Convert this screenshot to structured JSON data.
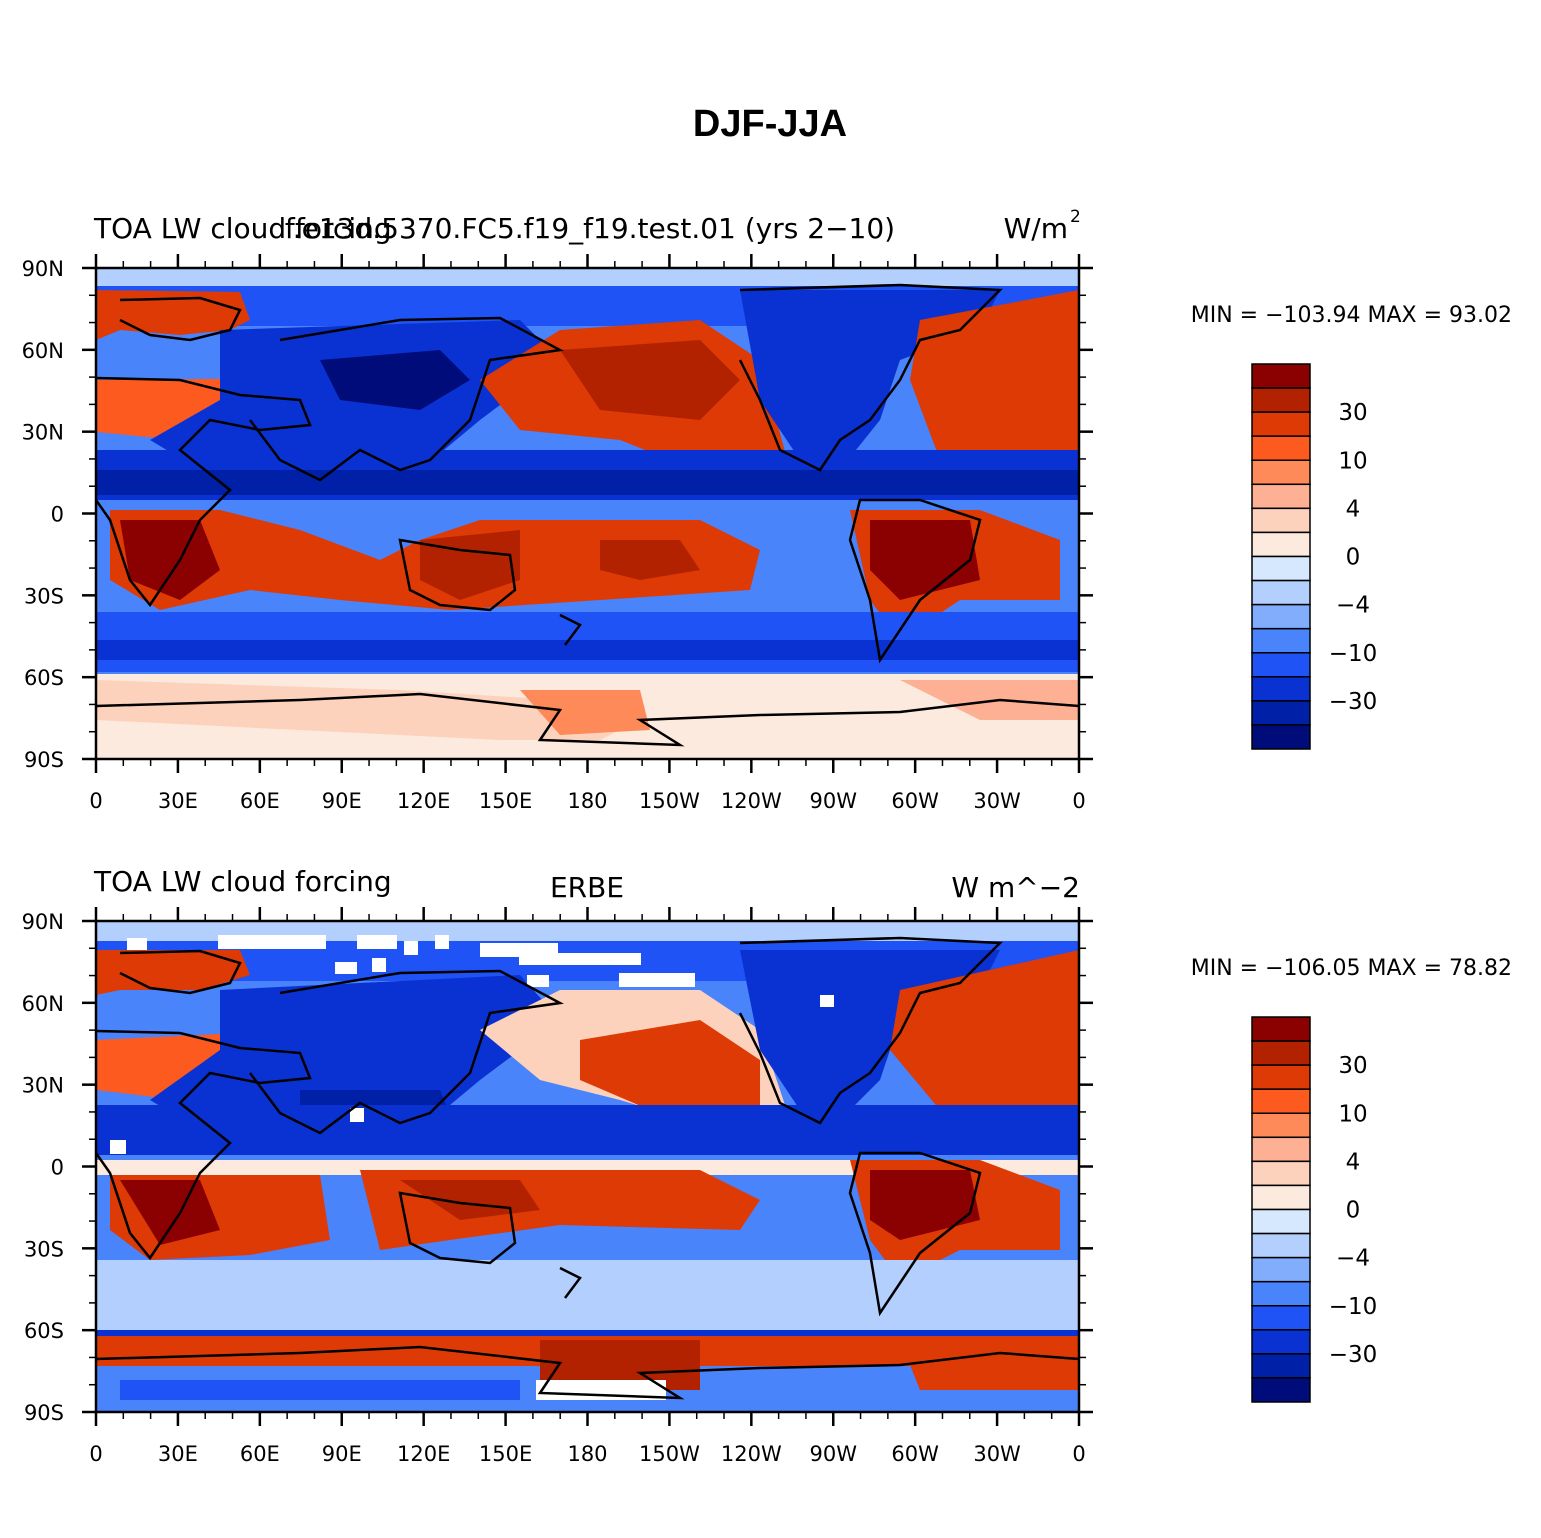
{
  "figure": {
    "title": "DJF-JJA"
  },
  "panels": [
    {
      "left_title": "TOA LW cloud forcing",
      "center_title": "f.e13d.5370.FC5.f19_f19.test.01 (yrs 2−10)",
      "right_title_base": "W/m",
      "right_title_sup": "2",
      "stats_label": "MIN = −103.94  MAX =   93.02",
      "min": -103.94,
      "max": 93.02,
      "has_missing_patches": false
    },
    {
      "left_title": "TOA LW cloud forcing",
      "center_title": "ERBE",
      "right_title_base": "W m^−2",
      "right_title_sup": "",
      "stats_label": "MIN = −106.05  MAX =   78.82",
      "min": -106.05,
      "max": 78.82,
      "has_missing_patches": true
    }
  ],
  "axes": {
    "lat_labels": [
      "90N",
      "60N",
      "30N",
      "0",
      "30S",
      "60S",
      "90S"
    ],
    "lon_labels": [
      "0",
      "30E",
      "60E",
      "90E",
      "120E",
      "150E",
      "180",
      "150W",
      "120W",
      "90W",
      "60W",
      "30W",
      "0"
    ]
  },
  "colorbar": {
    "labels": [
      "30",
      "10",
      "4",
      "0",
      "−4",
      "−10",
      "−30"
    ],
    "colors": [
      "#8b0000",
      "#b22200",
      "#dd3a06",
      "#fd5a20",
      "#fd8a58",
      "#fdb094",
      "#fdd2bd",
      "#fdeade",
      "#d6e8fe",
      "#b3cffd",
      "#82acfc",
      "#4a84fb",
      "#1f53f5",
      "#0a32d2",
      "#0020a8",
      "#000c7a"
    ]
  },
  "chart_data": [
    {
      "type": "heatmap",
      "title": "DJF-JJA",
      "left_title": "TOA LW cloud forcing",
      "center_title": "f.e13d.5370.FC5.f19_f19.test.01 (yrs 2−10)",
      "units": "W/m2",
      "x": "longitude (0 to 360)",
      "y": "latitude (90S to 90N)",
      "min": -103.94,
      "max": 93.02,
      "contour_levels": [
        -50,
        -40,
        -30,
        -20,
        -10,
        -6,
        -4,
        -2,
        0,
        2,
        4,
        6,
        10,
        20,
        30,
        40,
        50
      ]
    },
    {
      "type": "heatmap",
      "title": "DJF-JJA",
      "left_title": "TOA LW cloud forcing",
      "center_title": "ERBE",
      "units": "W m^−2",
      "x": "longitude (0 to 360)",
      "y": "latitude (90S to 90N)",
      "min": -106.05,
      "max": 78.82,
      "contour_levels": [
        -50,
        -40,
        -30,
        -20,
        -10,
        -6,
        -4,
        -2,
        0,
        2,
        4,
        6,
        10,
        20,
        30,
        40,
        50
      ]
    }
  ]
}
